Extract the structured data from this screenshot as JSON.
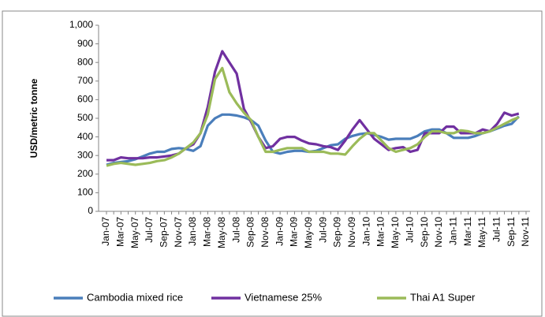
{
  "chart_data": {
    "type": "line",
    "y_label": "USD/metric tonne",
    "categories": [
      "Jan-07",
      null,
      "Mar-07",
      null,
      "May-07",
      null,
      "Jul-07",
      null,
      "Sep-07",
      null,
      "Nov-07",
      null,
      "Jan-08",
      null,
      "Mar-08",
      null,
      "May-08",
      null,
      "Jul-08",
      null,
      "Sep-08",
      null,
      "Nov-08",
      null,
      "Jan-09",
      null,
      "Mar-09",
      null,
      "May-09",
      null,
      "Jul-09",
      null,
      "Sep-09",
      null,
      "Nov-09",
      null,
      "Jan-10",
      null,
      "Mar-10",
      null,
      "May-10",
      null,
      "Jul-10",
      null,
      "Sep-10",
      null,
      "Nov-10",
      null,
      "Jan-11",
      null,
      "Mar-11",
      null,
      "May-11",
      null,
      "Jul-11",
      null,
      "Sep-11",
      null,
      "Nov-11"
    ],
    "series": [
      {
        "name": "Cambodia mixed rice",
        "color": "#4a7ebb",
        "values": [
          250,
          260,
          265,
          270,
          280,
          295,
          310,
          320,
          320,
          335,
          340,
          335,
          325,
          350,
          460,
          500,
          520,
          520,
          515,
          505,
          490,
          460,
          380,
          320,
          310,
          320,
          325,
          325,
          320,
          325,
          340,
          355,
          360,
          390,
          405,
          415,
          420,
          410,
          400,
          385,
          390,
          390,
          390,
          405,
          430,
          440,
          440,
          420,
          395,
          395,
          395,
          405,
          420,
          430,
          445,
          460,
          470,
          510,
          null
        ]
      },
      {
        "name": "Vietnamese 25%",
        "color": "#7030a0",
        "values": [
          275,
          275,
          290,
          285,
          285,
          285,
          290,
          290,
          295,
          300,
          310,
          340,
          360,
          420,
          560,
          750,
          860,
          800,
          740,
          550,
          480,
          400,
          340,
          350,
          390,
          400,
          400,
          380,
          365,
          360,
          350,
          345,
          330,
          380,
          440,
          490,
          440,
          390,
          360,
          330,
          340,
          345,
          320,
          330,
          420,
          420,
          420,
          455,
          455,
          420,
          420,
          420,
          440,
          430,
          470,
          530,
          515,
          525,
          null
        ]
      },
      {
        "name": "Thai A1 Super",
        "color": "#9bbb59",
        "values": [
          245,
          255,
          260,
          255,
          250,
          255,
          260,
          270,
          275,
          290,
          310,
          340,
          370,
          420,
          520,
          710,
          770,
          640,
          580,
          530,
          490,
          400,
          320,
          320,
          330,
          340,
          340,
          340,
          320,
          320,
          320,
          310,
          310,
          305,
          350,
          390,
          420,
          420,
          380,
          340,
          320,
          330,
          340,
          360,
          400,
          430,
          430,
          420,
          420,
          435,
          430,
          420,
          420,
          430,
          450,
          470,
          490,
          505,
          null
        ]
      }
    ],
    "ylim": [
      0,
      1000
    ],
    "yticks": [
      0,
      100,
      200,
      300,
      400,
      500,
      600,
      700,
      800,
      900,
      {
        "value": 1000,
        "label": "1,000"
      }
    ],
    "grid": false,
    "legend": "bottom"
  }
}
